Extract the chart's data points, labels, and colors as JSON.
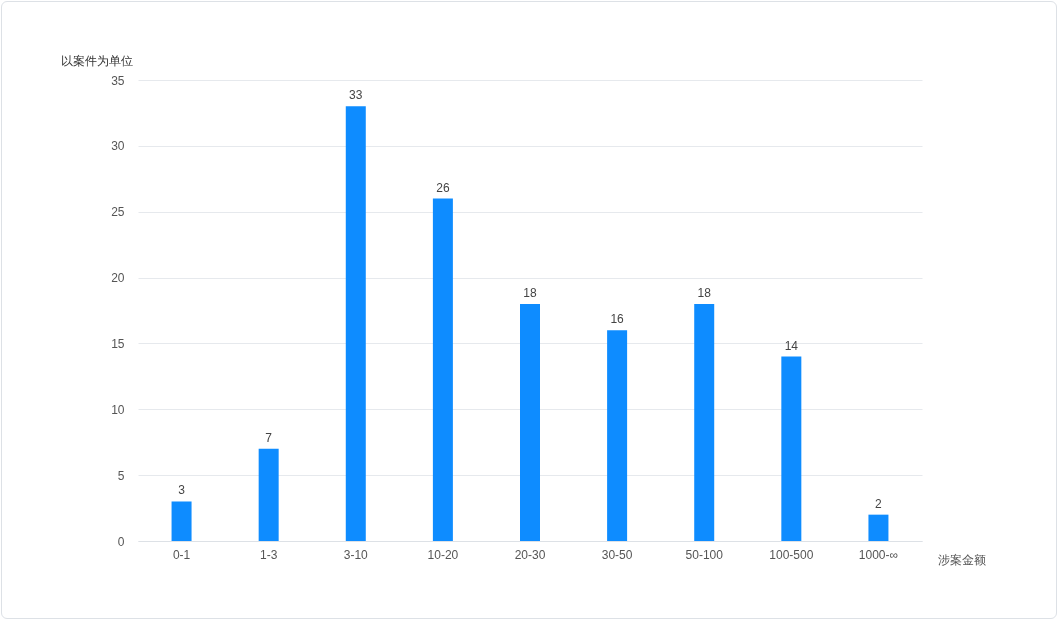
{
  "chart_data": {
    "type": "bar",
    "categories": [
      "0-1",
      "1-3",
      "3-10",
      "10-20",
      "20-30",
      "30-50",
      "50-100",
      "100-500",
      "1000-∞"
    ],
    "values": [
      3,
      7,
      33,
      26,
      18,
      16,
      18,
      14,
      2
    ],
    "color": "#0e8cff",
    "xlabel": "涉案金额",
    "ylabel": "以案件为单位",
    "ylim": [
      0,
      35
    ],
    "yticks": [
      0,
      5,
      10,
      15,
      20,
      25,
      30,
      35
    ],
    "grid": "y",
    "data_labels": true
  }
}
